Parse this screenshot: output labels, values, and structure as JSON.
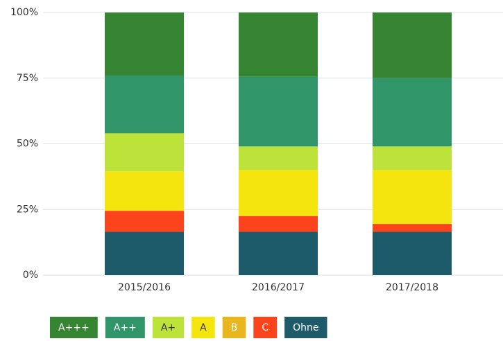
{
  "chart_data": {
    "type": "stacked_bar_percent",
    "categories": [
      "2015/2016",
      "2016/2017",
      "2017/2018"
    ],
    "series": [
      {
        "name": "A+++",
        "color": "#368532",
        "values": [
          24,
          24.5,
          25
        ]
      },
      {
        "name": "A++",
        "color": "#31956a",
        "values": [
          22,
          26.5,
          26
        ]
      },
      {
        "name": "A+",
        "color": "#bde23a",
        "values": [
          14.5,
          9,
          9
        ]
      },
      {
        "name": "A",
        "color": "#f5e50f",
        "values": [
          15,
          17.5,
          20.5
        ]
      },
      {
        "name": "B",
        "color": "#e9b620",
        "values": [
          0,
          0,
          0
        ]
      },
      {
        "name": "C",
        "color": "#fb441c",
        "values": [
          8,
          6,
          3
        ]
      },
      {
        "name": "Ohne",
        "color": "#1d5b6b",
        "values": [
          16.5,
          16.5,
          16.5
        ]
      }
    ],
    "ylim": [
      0,
      100
    ],
    "yticks": [
      {
        "value": 0,
        "label": "0%"
      },
      {
        "value": 25,
        "label": "25%"
      },
      {
        "value": 50,
        "label": "50%"
      },
      {
        "value": 75,
        "label": "75%"
      },
      {
        "value": 100,
        "label": "100%"
      }
    ],
    "grid": true,
    "legend": "bottom-left"
  }
}
